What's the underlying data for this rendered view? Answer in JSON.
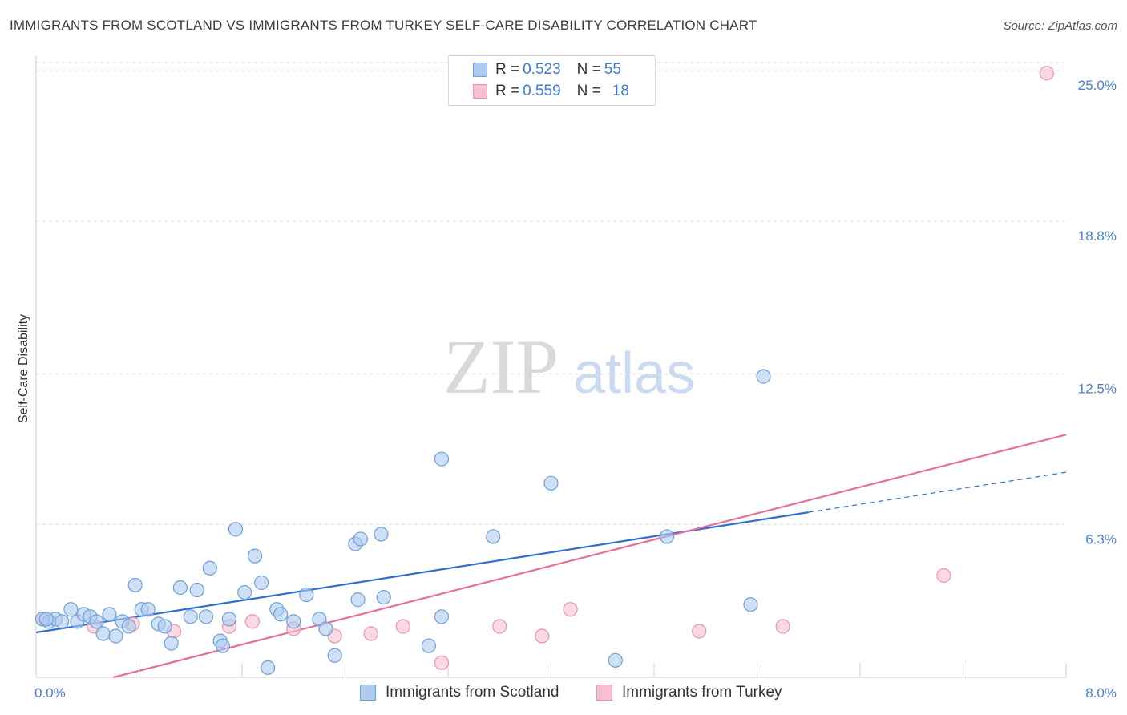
{
  "title": "IMMIGRANTS FROM SCOTLAND VS IMMIGRANTS FROM TURKEY SELF-CARE DISABILITY CORRELATION CHART",
  "source": "Source: ZipAtlas.com",
  "watermark": {
    "zip": "ZIP",
    "atlas": "atlas"
  },
  "legend": {
    "scotland": {
      "r_label": "R = ",
      "r_value": "0.523",
      "n_label": "N = ",
      "n_value": "55"
    },
    "turkey": {
      "r_label": "R = ",
      "r_value": "0.559",
      "n_label": "N = ",
      "n_value": "18"
    }
  },
  "colors": {
    "scotland_fill": "#aecbf0",
    "scotland_stroke": "#6f9fd8",
    "scotland_line": "#2f6fd1",
    "turkey_fill": "#f6c0d0",
    "turkey_stroke": "#e894ae",
    "turkey_line": "#e56f99",
    "axis_text": "#4a7fd0"
  },
  "chart_data": {
    "type": "scatter",
    "title": "IMMIGRANTS FROM SCOTLAND VS IMMIGRANTS FROM TURKEY SELF-CARE DISABILITY CORRELATION CHART",
    "xlabel": "",
    "ylabel": "Self-Care Disability",
    "xlim": [
      0,
      8
    ],
    "ylim": [
      0,
      25.6
    ],
    "x_ticks": [
      "0.0%",
      "8.0%"
    ],
    "y_ticks": [
      {
        "value": 6.3,
        "label": "6.3%"
      },
      {
        "value": 12.5,
        "label": "12.5%"
      },
      {
        "value": 18.8,
        "label": "18.8%"
      },
      {
        "value": 25.0,
        "label": "25.0%"
      }
    ],
    "series": [
      {
        "name": "Immigrants from Scotland",
        "r": 0.523,
        "n": 55,
        "trend": {
          "x0": 0,
          "y0": 1.85,
          "x1": 6.0,
          "y1": 6.8,
          "dash_to_x": 8.0,
          "dash_to_y": 8.45
        },
        "points": [
          [
            0.05,
            2.4
          ],
          [
            0.1,
            2.3
          ],
          [
            0.15,
            2.4
          ],
          [
            0.2,
            2.3
          ],
          [
            0.27,
            2.8
          ],
          [
            0.32,
            2.3
          ],
          [
            0.37,
            2.6
          ],
          [
            0.42,
            2.5
          ],
          [
            0.47,
            2.3
          ],
          [
            0.52,
            1.8
          ],
          [
            0.57,
            2.6
          ],
          [
            0.62,
            1.7
          ],
          [
            0.67,
            2.3
          ],
          [
            0.72,
            2.1
          ],
          [
            0.77,
            3.8
          ],
          [
            0.82,
            2.8
          ],
          [
            0.87,
            2.8
          ],
          [
            0.95,
            2.2
          ],
          [
            1.0,
            2.1
          ],
          [
            1.05,
            1.4
          ],
          [
            1.12,
            3.7
          ],
          [
            1.2,
            2.5
          ],
          [
            1.25,
            3.6
          ],
          [
            1.32,
            2.5
          ],
          [
            1.35,
            4.5
          ],
          [
            1.43,
            1.5
          ],
          [
            1.45,
            1.3
          ],
          [
            1.5,
            2.4
          ],
          [
            1.55,
            6.1
          ],
          [
            1.62,
            3.5
          ],
          [
            1.7,
            5.0
          ],
          [
            1.75,
            3.9
          ],
          [
            1.8,
            0.4
          ],
          [
            1.87,
            2.8
          ],
          [
            1.9,
            2.6
          ],
          [
            2.0,
            2.3
          ],
          [
            2.1,
            3.4
          ],
          [
            2.2,
            2.4
          ],
          [
            2.25,
            2.0
          ],
          [
            2.32,
            0.9
          ],
          [
            2.48,
            5.5
          ],
          [
            2.5,
            3.2
          ],
          [
            2.52,
            5.7
          ],
          [
            2.68,
            5.9
          ],
          [
            2.7,
            3.3
          ],
          [
            3.05,
            1.3
          ],
          [
            3.15,
            2.5
          ],
          [
            3.15,
            9.0
          ],
          [
            3.55,
            5.8
          ],
          [
            4.0,
            8.0
          ],
          [
            4.5,
            0.7
          ],
          [
            4.9,
            5.8
          ],
          [
            5.55,
            3.0
          ],
          [
            5.65,
            12.4
          ],
          [
            0.08,
            2.4
          ]
        ]
      },
      {
        "name": "Immigrants from Turkey",
        "r": 0.559,
        "n": 18,
        "trend": {
          "x0": 0.6,
          "y0": 0.0,
          "x1": 8.0,
          "y1": 10.0
        },
        "points": [
          [
            0.05,
            2.4
          ],
          [
            0.45,
            2.1
          ],
          [
            0.75,
            2.2
          ],
          [
            1.07,
            1.9
          ],
          [
            1.5,
            2.1
          ],
          [
            1.68,
            2.3
          ],
          [
            2.0,
            2.0
          ],
          [
            2.32,
            1.7
          ],
          [
            2.6,
            1.8
          ],
          [
            2.85,
            2.1
          ],
          [
            3.15,
            0.6
          ],
          [
            3.6,
            2.1
          ],
          [
            3.93,
            1.7
          ],
          [
            4.15,
            2.8
          ],
          [
            5.15,
            1.9
          ],
          [
            5.8,
            2.1
          ],
          [
            7.05,
            4.2
          ],
          [
            7.85,
            24.9
          ]
        ]
      }
    ]
  },
  "bottom_legend": {
    "scotland": "Immigrants from Scotland",
    "turkey": "Immigrants from Turkey"
  }
}
